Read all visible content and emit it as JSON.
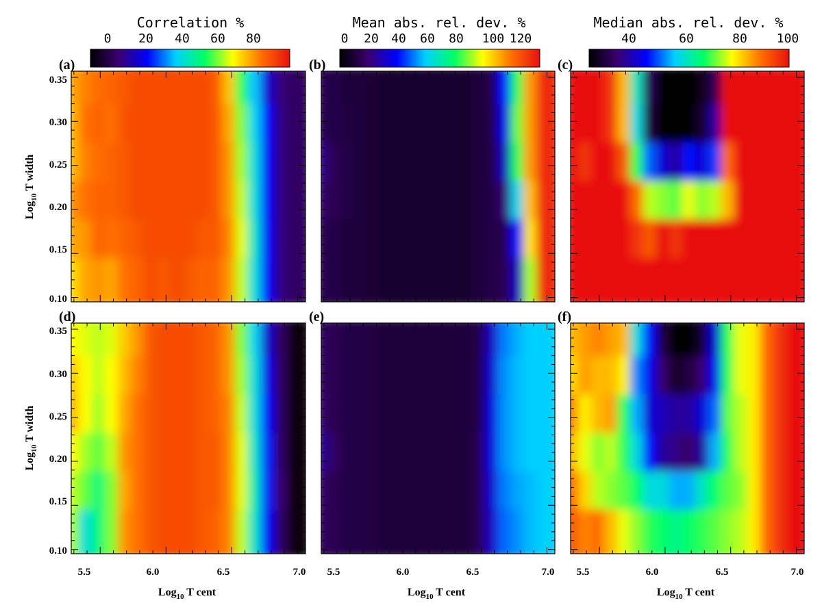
{
  "figure": {
    "colorbars": [
      {
        "title": "Correlation %",
        "ticks": [
          "0",
          "20",
          "40",
          "60",
          "80"
        ]
      },
      {
        "title": "Mean abs. rel. dev. %",
        "ticks": [
          "0",
          "20",
          "40",
          "60",
          "80",
          "100",
          "120"
        ]
      },
      {
        "title": "Median abs. rel. dev. %",
        "ticks": [
          "40",
          "60",
          "80",
          "100"
        ]
      }
    ],
    "panel_labels": [
      "(a)",
      "(b)",
      "(c)",
      "(d)",
      "(e)",
      "(f)"
    ],
    "x_label": {
      "prefix": "Log",
      "sub": "10",
      "suffix": " T cent"
    },
    "y_label": {
      "prefix": "Log",
      "sub": "10",
      "suffix": " T width"
    },
    "x_ticks": [
      "5.5",
      "6.0",
      "6.5",
      "7.0"
    ],
    "y_ticks": [
      "0.35",
      "0.30",
      "0.25",
      "0.20",
      "0.15",
      "0.10"
    ]
  },
  "colors": {
    "ramp": [
      "#000000",
      "#3a0070",
      "#0000ff",
      "#00d0ff",
      "#00ff66",
      "#ffff00",
      "#ff7000",
      "#e81010"
    ]
  },
  "chart_data": [
    {
      "type": "heatmap",
      "panel": "(a)",
      "metric": "Correlation %",
      "x": [
        5.3,
        5.4,
        5.5,
        5.6,
        5.7,
        5.8,
        5.9,
        6.0,
        6.1,
        6.2,
        6.3,
        6.4,
        6.5,
        6.6,
        6.7,
        6.8,
        6.9,
        7.0
      ],
      "y": [
        0.35,
        0.3,
        0.25,
        0.2,
        0.15,
        0.1
      ],
      "z": [
        [
          78,
          82,
          85,
          86,
          88,
          90,
          90,
          90,
          90,
          90,
          90,
          88,
          75,
          55,
          35,
          15,
          5,
          2
        ],
        [
          76,
          84,
          86,
          84,
          89,
          90,
          90,
          90,
          90,
          90,
          90,
          88,
          78,
          60,
          38,
          20,
          6,
          2
        ],
        [
          76,
          82,
          85,
          86,
          88,
          90,
          90,
          90,
          90,
          90,
          90,
          88,
          80,
          62,
          40,
          20,
          6,
          2
        ],
        [
          80,
          84,
          86,
          86,
          88,
          90,
          90,
          90,
          90,
          90,
          90,
          88,
          80,
          64,
          40,
          20,
          6,
          2
        ],
        [
          78,
          80,
          86,
          84,
          86,
          88,
          90,
          90,
          90,
          90,
          88,
          88,
          82,
          66,
          42,
          20,
          6,
          2
        ],
        [
          72,
          78,
          80,
          78,
          84,
          86,
          90,
          88,
          90,
          88,
          86,
          86,
          80,
          64,
          40,
          20,
          6,
          2
        ]
      ],
      "zlim": [
        -12,
        100
      ]
    },
    {
      "type": "heatmap",
      "panel": "(b)",
      "metric": "Mean abs. rel. dev. %",
      "x": [
        5.3,
        5.4,
        5.5,
        5.6,
        5.7,
        5.8,
        5.9,
        6.0,
        6.1,
        6.2,
        6.3,
        6.4,
        6.5,
        6.6,
        6.7,
        6.8,
        6.9,
        7.0
      ],
      "y": [
        0.35,
        0.3,
        0.25,
        0.2,
        0.15,
        0.1
      ],
      "z": [
        [
          14,
          12,
          10,
          10,
          9,
          8,
          8,
          8,
          8,
          8,
          8,
          8,
          10,
          12,
          40,
          80,
          110,
          130
        ],
        [
          14,
          12,
          11,
          10,
          9,
          8,
          8,
          8,
          8,
          8,
          8,
          8,
          10,
          12,
          35,
          85,
          110,
          130
        ],
        [
          22,
          14,
          12,
          10,
          9,
          8,
          8,
          8,
          8,
          8,
          8,
          8,
          10,
          12,
          30,
          80,
          110,
          130
        ],
        [
          18,
          14,
          12,
          10,
          9,
          8,
          8,
          8,
          8,
          8,
          8,
          8,
          10,
          12,
          20,
          60,
          105,
          130
        ],
        [
          14,
          12,
          10,
          10,
          9,
          8,
          8,
          8,
          8,
          8,
          8,
          8,
          10,
          12,
          14,
          40,
          100,
          130
        ],
        [
          14,
          12,
          10,
          10,
          9,
          8,
          8,
          8,
          8,
          8,
          8,
          8,
          10,
          12,
          14,
          30,
          90,
          130
        ]
      ],
      "zlim": [
        0,
        135
      ]
    },
    {
      "type": "heatmap",
      "panel": "(c)",
      "metric": "Median abs. rel. dev. %",
      "x": [
        5.3,
        5.4,
        5.5,
        5.6,
        5.7,
        5.8,
        5.9,
        6.0,
        6.1,
        6.2,
        6.3,
        6.4,
        6.5,
        6.6,
        6.7,
        6.8,
        6.9,
        7.0
      ],
      "y": [
        0.35,
        0.3,
        0.25,
        0.2,
        0.15,
        0.1
      ],
      "z": [
        [
          100,
          100,
          100,
          96,
          84,
          62,
          34,
          26,
          26,
          26,
          28,
          34,
          100,
          100,
          100,
          100,
          100,
          100
        ],
        [
          100,
          100,
          100,
          96,
          84,
          60,
          32,
          26,
          26,
          26,
          30,
          40,
          100,
          100,
          100,
          100,
          100,
          100
        ],
        [
          100,
          96,
          100,
          100,
          92,
          70,
          52,
          44,
          40,
          48,
          44,
          50,
          90,
          100,
          100,
          100,
          100,
          100
        ],
        [
          100,
          100,
          100,
          100,
          100,
          90,
          76,
          74,
          72,
          78,
          74,
          76,
          84,
          100,
          100,
          100,
          100,
          100
        ],
        [
          100,
          100,
          100,
          100,
          100,
          96,
          92,
          100,
          96,
          100,
          100,
          100,
          100,
          100,
          100,
          100,
          100,
          100
        ],
        [
          100,
          100,
          100,
          100,
          100,
          100,
          100,
          100,
          100,
          100,
          100,
          100,
          100,
          100,
          100,
          100,
          100,
          100
        ]
      ],
      "zlim": [
        26,
        100
      ]
    },
    {
      "type": "heatmap",
      "panel": "(d)",
      "metric": "Correlation %",
      "x": [
        5.3,
        5.4,
        5.5,
        5.6,
        5.7,
        5.8,
        5.9,
        6.0,
        6.1,
        6.2,
        6.3,
        6.4,
        6.5,
        6.6,
        6.7,
        6.8,
        6.9,
        7.0
      ],
      "y": [
        0.35,
        0.3,
        0.25,
        0.2,
        0.15,
        0.1
      ],
      "z": [
        [
          68,
          66,
          64,
          66,
          74,
          80,
          88,
          90,
          90,
          90,
          88,
          86,
          80,
          60,
          38,
          15,
          2,
          -10
        ],
        [
          74,
          68,
          64,
          68,
          76,
          82,
          88,
          90,
          90,
          90,
          88,
          86,
          80,
          62,
          40,
          18,
          2,
          -10
        ],
        [
          76,
          68,
          62,
          68,
          78,
          84,
          88,
          90,
          90,
          90,
          88,
          86,
          82,
          64,
          40,
          20,
          2,
          -10
        ],
        [
          68,
          62,
          58,
          64,
          80,
          84,
          88,
          90,
          90,
          90,
          88,
          88,
          82,
          66,
          42,
          22,
          2,
          -10
        ],
        [
          64,
          58,
          50,
          60,
          78,
          84,
          88,
          90,
          90,
          90,
          88,
          88,
          82,
          66,
          44,
          22,
          4,
          -10
        ],
        [
          62,
          40,
          50,
          60,
          80,
          84,
          88,
          90,
          90,
          90,
          88,
          86,
          82,
          64,
          42,
          20,
          2,
          -10
        ]
      ],
      "zlim": [
        -12,
        100
      ]
    },
    {
      "type": "heatmap",
      "panel": "(e)",
      "metric": "Mean abs. rel. dev. %",
      "x": [
        5.3,
        5.4,
        5.5,
        5.6,
        5.7,
        5.8,
        5.9,
        6.0,
        6.1,
        6.2,
        6.3,
        6.4,
        6.5,
        6.6,
        6.7,
        6.8,
        6.9,
        7.0
      ],
      "y": [
        0.35,
        0.3,
        0.25,
        0.2,
        0.15,
        0.1
      ],
      "z": [
        [
          16,
          14,
          12,
          12,
          11,
          10,
          10,
          10,
          10,
          10,
          10,
          10,
          12,
          30,
          50,
          55,
          58,
          58
        ],
        [
          16,
          14,
          12,
          12,
          11,
          10,
          10,
          10,
          10,
          10,
          10,
          10,
          12,
          32,
          52,
          56,
          58,
          58
        ],
        [
          18,
          14,
          12,
          12,
          11,
          10,
          10,
          10,
          10,
          10,
          10,
          10,
          12,
          34,
          52,
          56,
          58,
          58
        ],
        [
          24,
          16,
          12,
          12,
          11,
          10,
          10,
          10,
          10,
          10,
          10,
          10,
          14,
          34,
          52,
          56,
          58,
          58
        ],
        [
          18,
          14,
          12,
          12,
          11,
          10,
          10,
          10,
          10,
          10,
          10,
          10,
          14,
          32,
          50,
          54,
          56,
          58
        ],
        [
          16,
          14,
          12,
          12,
          11,
          10,
          10,
          10,
          10,
          10,
          10,
          10,
          14,
          30,
          48,
          52,
          56,
          58
        ]
      ],
      "zlim": [
        0,
        135
      ]
    },
    {
      "type": "heatmap",
      "panel": "(f)",
      "metric": "Median abs. rel. dev. %",
      "x": [
        5.3,
        5.4,
        5.5,
        5.6,
        5.7,
        5.8,
        5.9,
        6.0,
        6.1,
        6.2,
        6.3,
        6.4,
        6.5,
        6.6,
        6.7,
        6.8,
        6.9,
        7.0
      ],
      "y": [
        0.35,
        0.3,
        0.25,
        0.2,
        0.15,
        0.1
      ],
      "z": [
        [
          84,
          86,
          88,
          86,
          84,
          60,
          48,
          32,
          26,
          26,
          30,
          44,
          70,
          78,
          80,
          90,
          96,
          100
        ],
        [
          82,
          86,
          84,
          84,
          80,
          54,
          46,
          36,
          30,
          32,
          36,
          46,
          70,
          78,
          80,
          90,
          96,
          100
        ],
        [
          88,
          80,
          84,
          86,
          70,
          56,
          44,
          42,
          40,
          40,
          44,
          52,
          72,
          76,
          80,
          90,
          96,
          100
        ],
        [
          84,
          78,
          74,
          76,
          70,
          60,
          48,
          40,
          38,
          36,
          40,
          56,
          70,
          76,
          80,
          90,
          96,
          100
        ],
        [
          90,
          82,
          76,
          74,
          72,
          68,
          60,
          60,
          56,
          56,
          62,
          68,
          72,
          74,
          80,
          90,
          96,
          100
        ],
        [
          92,
          88,
          90,
          84,
          78,
          74,
          70,
          68,
          66,
          68,
          70,
          72,
          74,
          76,
          80,
          90,
          96,
          100
        ]
      ],
      "zlim": [
        26,
        100
      ]
    }
  ]
}
